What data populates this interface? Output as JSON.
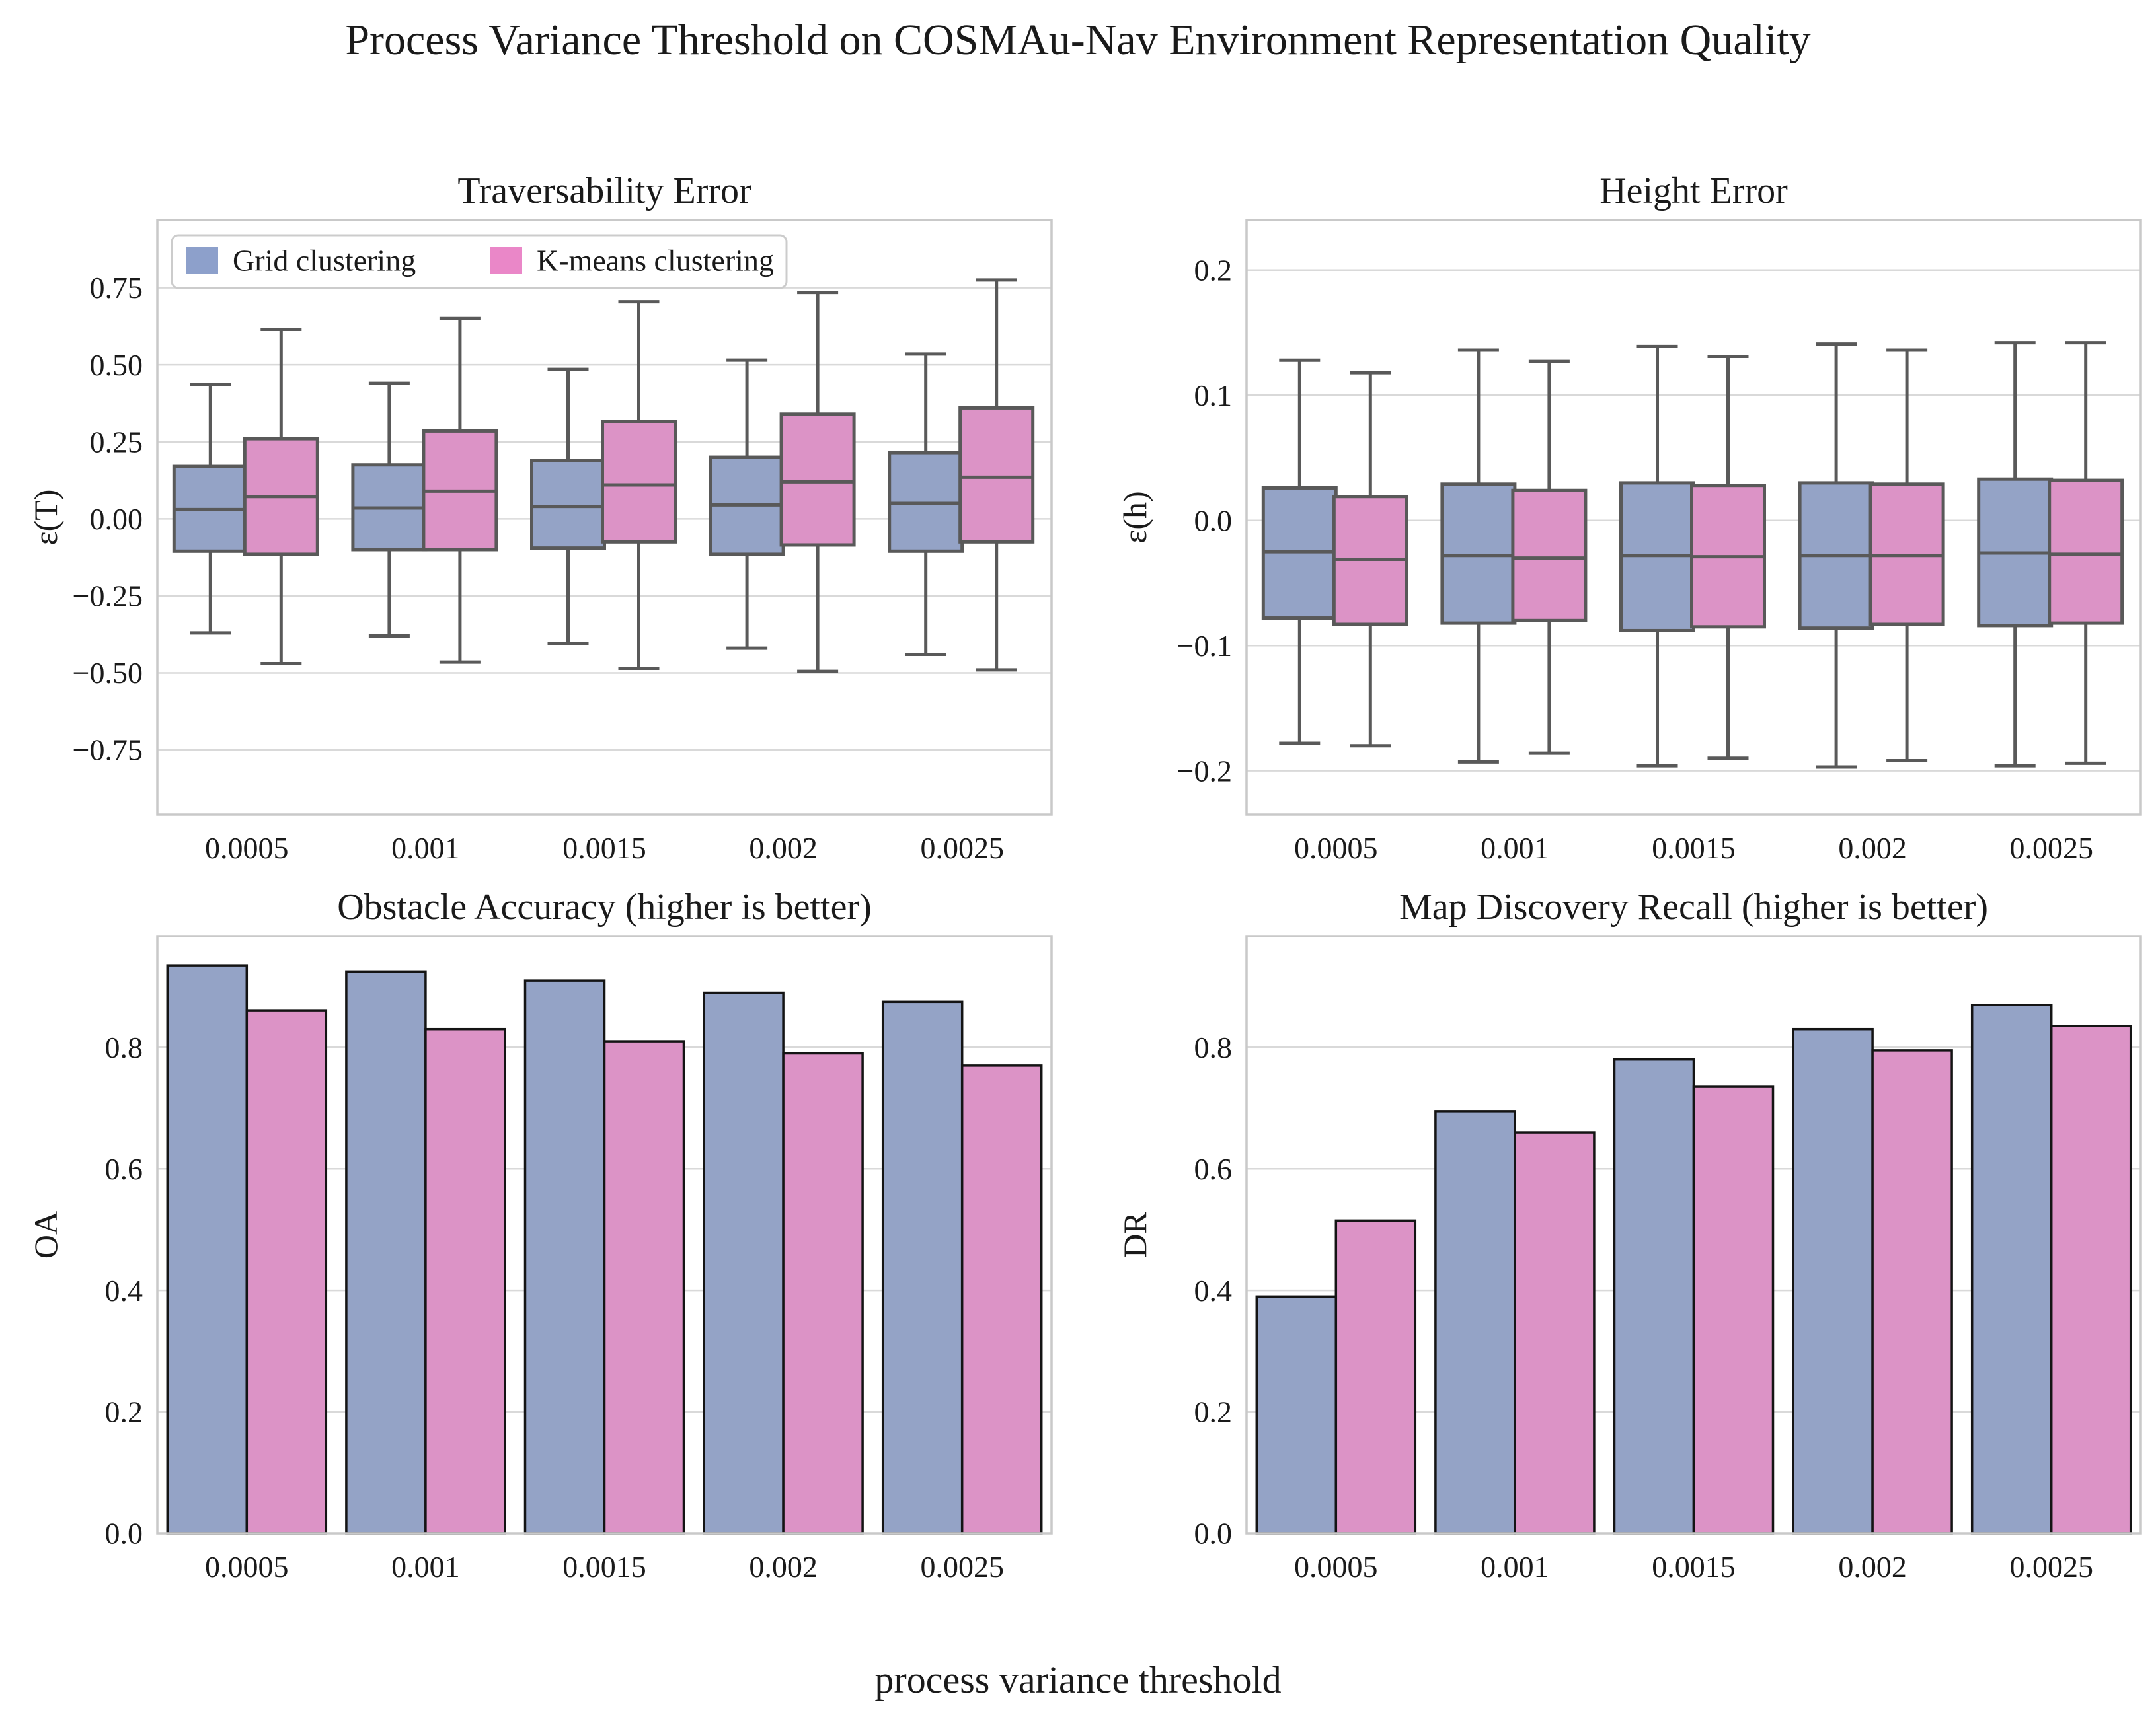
{
  "title": "Process Variance Threshold on COSMAu-Nav Environment Representation Quality",
  "xlabel": "process variance threshold",
  "categories": [
    "0.0005",
    "0.001",
    "0.0015",
    "0.002",
    "0.0025"
  ],
  "legend": {
    "items": [
      {
        "label": "Grid clustering",
        "swatch_color": "#8da0cb"
      },
      {
        "label": "K-means clustering",
        "swatch_color": "#ea87c8"
      }
    ]
  },
  "palette": {
    "grid_fill": "#94a3c6",
    "kmeans_fill": "#dc93c6",
    "box_line": "#595959",
    "bar_edge": "#141414",
    "grid_line": "#d9d9d9",
    "spine": "#c9c9c9",
    "text": "#1a1a1a",
    "background": "#ffffff"
  },
  "chart_data": [
    {
      "type": "box",
      "title": "Traversability Error",
      "ylabel": "ε(T)",
      "ylim": [
        -0.96,
        0.97
      ],
      "grid": true,
      "legend_in_axes": true,
      "yticks": [
        {
          "v": 0.75,
          "label": "0.75"
        },
        {
          "v": 0.5,
          "label": "0.50"
        },
        {
          "v": 0.25,
          "label": "0.25"
        },
        {
          "v": 0.0,
          "label": "0.00"
        },
        {
          "v": -0.25,
          "label": "−0.25"
        },
        {
          "v": -0.5,
          "label": "−0.50"
        },
        {
          "v": -0.75,
          "label": "−0.75"
        }
      ],
      "series": [
        {
          "name": "Grid clustering",
          "color": "#94a3c6",
          "boxes": [
            {
              "lo": -0.37,
              "q1": -0.105,
              "med": 0.03,
              "q3": 0.17,
              "hi": 0.435
            },
            {
              "lo": -0.38,
              "q1": -0.1,
              "med": 0.035,
              "q3": 0.175,
              "hi": 0.44
            },
            {
              "lo": -0.405,
              "q1": -0.095,
              "med": 0.04,
              "q3": 0.19,
              "hi": 0.485
            },
            {
              "lo": -0.42,
              "q1": -0.115,
              "med": 0.045,
              "q3": 0.2,
              "hi": 0.515
            },
            {
              "lo": -0.44,
              "q1": -0.105,
              "med": 0.05,
              "q3": 0.215,
              "hi": 0.535
            }
          ]
        },
        {
          "name": "K-means clustering",
          "color": "#dc93c6",
          "boxes": [
            {
              "lo": -0.47,
              "q1": -0.115,
              "med": 0.072,
              "q3": 0.26,
              "hi": 0.615
            },
            {
              "lo": -0.465,
              "q1": -0.1,
              "med": 0.09,
              "q3": 0.285,
              "hi": 0.65
            },
            {
              "lo": -0.485,
              "q1": -0.075,
              "med": 0.11,
              "q3": 0.315,
              "hi": 0.705
            },
            {
              "lo": -0.495,
              "q1": -0.085,
              "med": 0.12,
              "q3": 0.34,
              "hi": 0.735
            },
            {
              "lo": -0.49,
              "q1": -0.075,
              "med": 0.135,
              "q3": 0.36,
              "hi": 0.775
            }
          ]
        }
      ]
    },
    {
      "type": "box",
      "title": "Height Error",
      "ylabel": "ε(h)",
      "ylim": [
        -0.235,
        0.24
      ],
      "grid": true,
      "legend_in_axes": false,
      "yticks": [
        {
          "v": 0.2,
          "label": "0.2"
        },
        {
          "v": 0.1,
          "label": "0.1"
        },
        {
          "v": 0.0,
          "label": "0.0"
        },
        {
          "v": -0.1,
          "label": "−0.1"
        },
        {
          "v": -0.2,
          "label": "−0.2"
        }
      ],
      "series": [
        {
          "name": "Grid clustering",
          "color": "#94a3c6",
          "boxes": [
            {
              "lo": -0.178,
              "q1": -0.078,
              "med": -0.025,
              "q3": 0.026,
              "hi": 0.128
            },
            {
              "lo": -0.193,
              "q1": -0.082,
              "med": -0.028,
              "q3": 0.029,
              "hi": 0.136
            },
            {
              "lo": -0.196,
              "q1": -0.088,
              "med": -0.028,
              "q3": 0.03,
              "hi": 0.139
            },
            {
              "lo": -0.197,
              "q1": -0.086,
              "med": -0.028,
              "q3": 0.03,
              "hi": 0.141
            },
            {
              "lo": -0.196,
              "q1": -0.084,
              "med": -0.026,
              "q3": 0.033,
              "hi": 0.142
            }
          ]
        },
        {
          "name": "K-means clustering",
          "color": "#dc93c6",
          "boxes": [
            {
              "lo": -0.18,
              "q1": -0.083,
              "med": -0.031,
              "q3": 0.019,
              "hi": 0.118
            },
            {
              "lo": -0.186,
              "q1": -0.08,
              "med": -0.03,
              "q3": 0.024,
              "hi": 0.127
            },
            {
              "lo": -0.19,
              "q1": -0.085,
              "med": -0.029,
              "q3": 0.028,
              "hi": 0.131
            },
            {
              "lo": -0.192,
              "q1": -0.083,
              "med": -0.028,
              "q3": 0.029,
              "hi": 0.136
            },
            {
              "lo": -0.194,
              "q1": -0.082,
              "med": -0.027,
              "q3": 0.032,
              "hi": 0.142
            }
          ]
        }
      ]
    },
    {
      "type": "bar",
      "title": "Obstacle Accuracy (higher is better)",
      "ylabel": "OA",
      "ylim": [
        0,
        0.983
      ],
      "grid": true,
      "legend_in_axes": false,
      "yticks": [
        {
          "v": 0.0,
          "label": "0.0"
        },
        {
          "v": 0.2,
          "label": "0.2"
        },
        {
          "v": 0.4,
          "label": "0.4"
        },
        {
          "v": 0.6,
          "label": "0.6"
        },
        {
          "v": 0.8,
          "label": "0.8"
        }
      ],
      "series": [
        {
          "name": "Grid clustering",
          "color": "#94a3c6",
          "values": [
            0.935,
            0.925,
            0.91,
            0.89,
            0.875
          ]
        },
        {
          "name": "K-means clustering",
          "color": "#dc93c6",
          "values": [
            0.86,
            0.83,
            0.81,
            0.79,
            0.77
          ]
        }
      ]
    },
    {
      "type": "bar",
      "title": "Map Discovery Recall (higher is better)",
      "ylabel": "DR",
      "ylim": [
        0,
        0.983
      ],
      "grid": true,
      "legend_in_axes": false,
      "yticks": [
        {
          "v": 0.0,
          "label": "0.0"
        },
        {
          "v": 0.2,
          "label": "0.2"
        },
        {
          "v": 0.4,
          "label": "0.4"
        },
        {
          "v": 0.6,
          "label": "0.6"
        },
        {
          "v": 0.8,
          "label": "0.8"
        }
      ],
      "series": [
        {
          "name": "Grid clustering",
          "color": "#94a3c6",
          "values": [
            0.39,
            0.695,
            0.78,
            0.83,
            0.87
          ]
        },
        {
          "name": "K-means clustering",
          "color": "#dc93c6",
          "values": [
            0.515,
            0.66,
            0.735,
            0.795,
            0.835
          ]
        }
      ]
    }
  ]
}
